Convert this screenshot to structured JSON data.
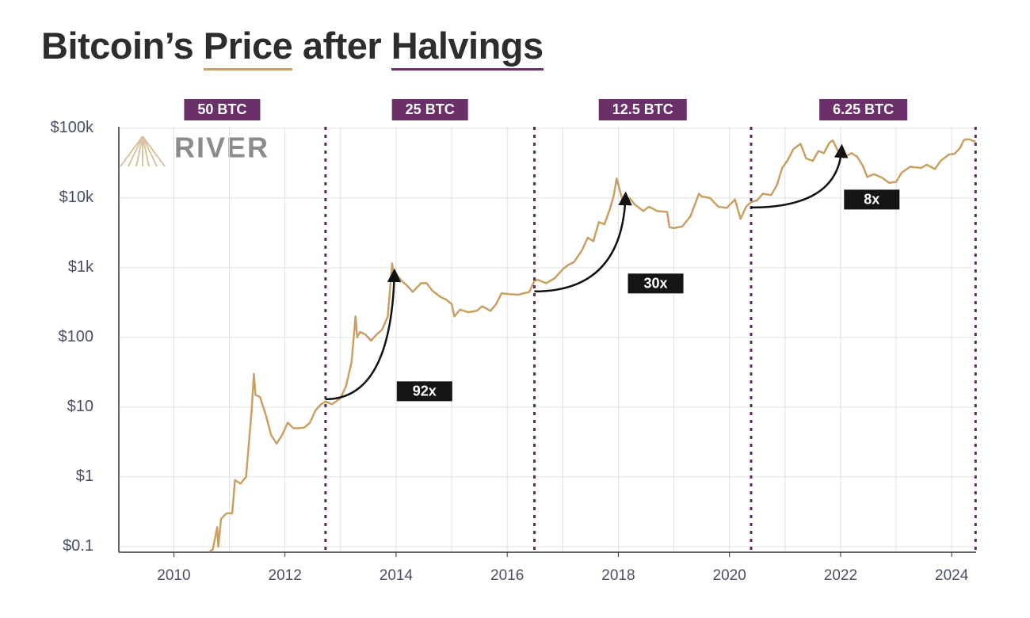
{
  "chart_data": {
    "type": "line",
    "title": [
      {
        "text": "Bitcoin’s "
      },
      {
        "text": "Price",
        "underline": "#c9a063"
      },
      {
        "text": " after "
      },
      {
        "text": "Halvings",
        "underline": "#6b3069"
      }
    ],
    "log_scale": true,
    "grid": true,
    "color": "#c9a063",
    "xlim": [
      2009.01,
      2024.44
    ],
    "xticks": [
      2010,
      2012,
      2014,
      2016,
      2018,
      2020,
      2022,
      2024
    ],
    "xminor_ticks": [
      2011,
      2013,
      2015,
      2017,
      2019,
      2021,
      2023
    ],
    "ylim": [
      0.083,
      105000
    ],
    "yticks": [
      {
        "value": 0.1,
        "label": "$0.1"
      },
      {
        "value": 1,
        "label": "$1"
      },
      {
        "value": 10,
        "label": "$10"
      },
      {
        "value": 100,
        "label": "$100"
      },
      {
        "value": 1000,
        "label": "$1k"
      },
      {
        "value": 10000,
        "label": "$10k"
      },
      {
        "value": 100000,
        "label": "$100k"
      }
    ],
    "halvings": [
      2012.73,
      2016.49,
      2020.39,
      2024.43
    ],
    "halving_color": "#5d2a5e",
    "eras": [
      "50 BTC",
      "25 BTC",
      "12.5 BTC",
      "6.25 BTC"
    ],
    "era_color": "#6b3069",
    "annotations": [
      {
        "text": "92x",
        "from": [
          2012.73,
          13
        ],
        "to": [
          2013.97,
          950
        ]
      },
      {
        "text": "30x",
        "from": [
          2016.49,
          457
        ],
        "to": [
          2018.13,
          12000
        ]
      },
      {
        "text": "8x",
        "from": [
          2020.39,
          7300
        ],
        "to": [
          2022.02,
          57700
        ]
      }
    ],
    "x": [
      2010.64,
      2010.7,
      2010.78,
      2010.8,
      2010.85,
      2010.95,
      2011.05,
      2011.1,
      2011.2,
      2011.3,
      2011.35,
      2011.4,
      2011.44,
      2011.47,
      2011.55,
      2011.65,
      2011.75,
      2011.85,
      2011.95,
      2012.05,
      2012.15,
      2012.25,
      2012.35,
      2012.45,
      2012.55,
      2012.65,
      2012.73,
      2012.85,
      2013.0,
      2013.1,
      2013.2,
      2013.27,
      2013.3,
      2013.35,
      2013.45,
      2013.55,
      2013.65,
      2013.75,
      2013.85,
      2013.9,
      2013.93,
      2013.96,
      2014.0,
      2014.1,
      2014.2,
      2014.3,
      2014.45,
      2014.55,
      2014.65,
      2014.8,
      2014.9,
      2015.0,
      2015.05,
      2015.15,
      2015.3,
      2015.45,
      2015.55,
      2015.7,
      2015.8,
      2015.9,
      2016.0,
      2016.2,
      2016.4,
      2016.49,
      2016.55,
      2016.7,
      2016.85,
      2017.0,
      2017.1,
      2017.2,
      2017.35,
      2017.45,
      2017.55,
      2017.65,
      2017.75,
      2017.85,
      2017.92,
      2017.97,
      2018.05,
      2018.1,
      2018.2,
      2018.3,
      2018.45,
      2018.55,
      2018.7,
      2018.88,
      2018.92,
      2019.0,
      2019.15,
      2019.3,
      2019.45,
      2019.5,
      2019.65,
      2019.8,
      2019.95,
      2020.1,
      2020.2,
      2020.3,
      2020.39,
      2020.5,
      2020.6,
      2020.75,
      2020.85,
      2020.95,
      2021.05,
      2021.15,
      2021.28,
      2021.38,
      2021.5,
      2021.6,
      2021.7,
      2021.8,
      2021.86,
      2021.95,
      2022.05,
      2022.2,
      2022.3,
      2022.4,
      2022.48,
      2022.6,
      2022.75,
      2022.87,
      2023.0,
      2023.1,
      2023.25,
      2023.45,
      2023.55,
      2023.7,
      2023.8,
      2023.95,
      2024.05,
      2024.15,
      2024.22,
      2024.3,
      2024.43
    ],
    "values": [
      0.085,
      0.09,
      0.19,
      0.1,
      0.25,
      0.3,
      0.3,
      0.9,
      0.8,
      1.0,
      3,
      9,
      30,
      15,
      14,
      8,
      4,
      3,
      4,
      6,
      5,
      5,
      5.1,
      6,
      9,
      11,
      12,
      11,
      13.5,
      20,
      45,
      200,
      100,
      120,
      110,
      90,
      110,
      130,
      200,
      600,
      1150,
      700,
      800,
      650,
      550,
      450,
      600,
      600,
      470,
      380,
      350,
      300,
      200,
      250,
      230,
      240,
      280,
      240,
      300,
      430,
      420,
      410,
      450,
      650,
      670,
      600,
      700,
      950,
      1100,
      1200,
      1800,
      2700,
      2400,
      4500,
      4200,
      7000,
      11000,
      19000,
      11000,
      8000,
      10000,
      8000,
      6500,
      7500,
      6500,
      6300,
      3800,
      3700,
      3900,
      5500,
      11500,
      10500,
      10000,
      7500,
      7200,
      9500,
      5000,
      7500,
      8700,
      9300,
      11500,
      11000,
      15000,
      27000,
      35000,
      50000,
      60000,
      37000,
      34000,
      47000,
      44000,
      62000,
      67000,
      48000,
      38000,
      44000,
      39000,
      29000,
      20000,
      22000,
      19500,
      16500,
      17000,
      23000,
      28000,
      27000,
      30000,
      26000,
      34000,
      42000,
      43000,
      52000,
      68000,
      70000,
      64000
    ]
  },
  "logo": "RIVER"
}
